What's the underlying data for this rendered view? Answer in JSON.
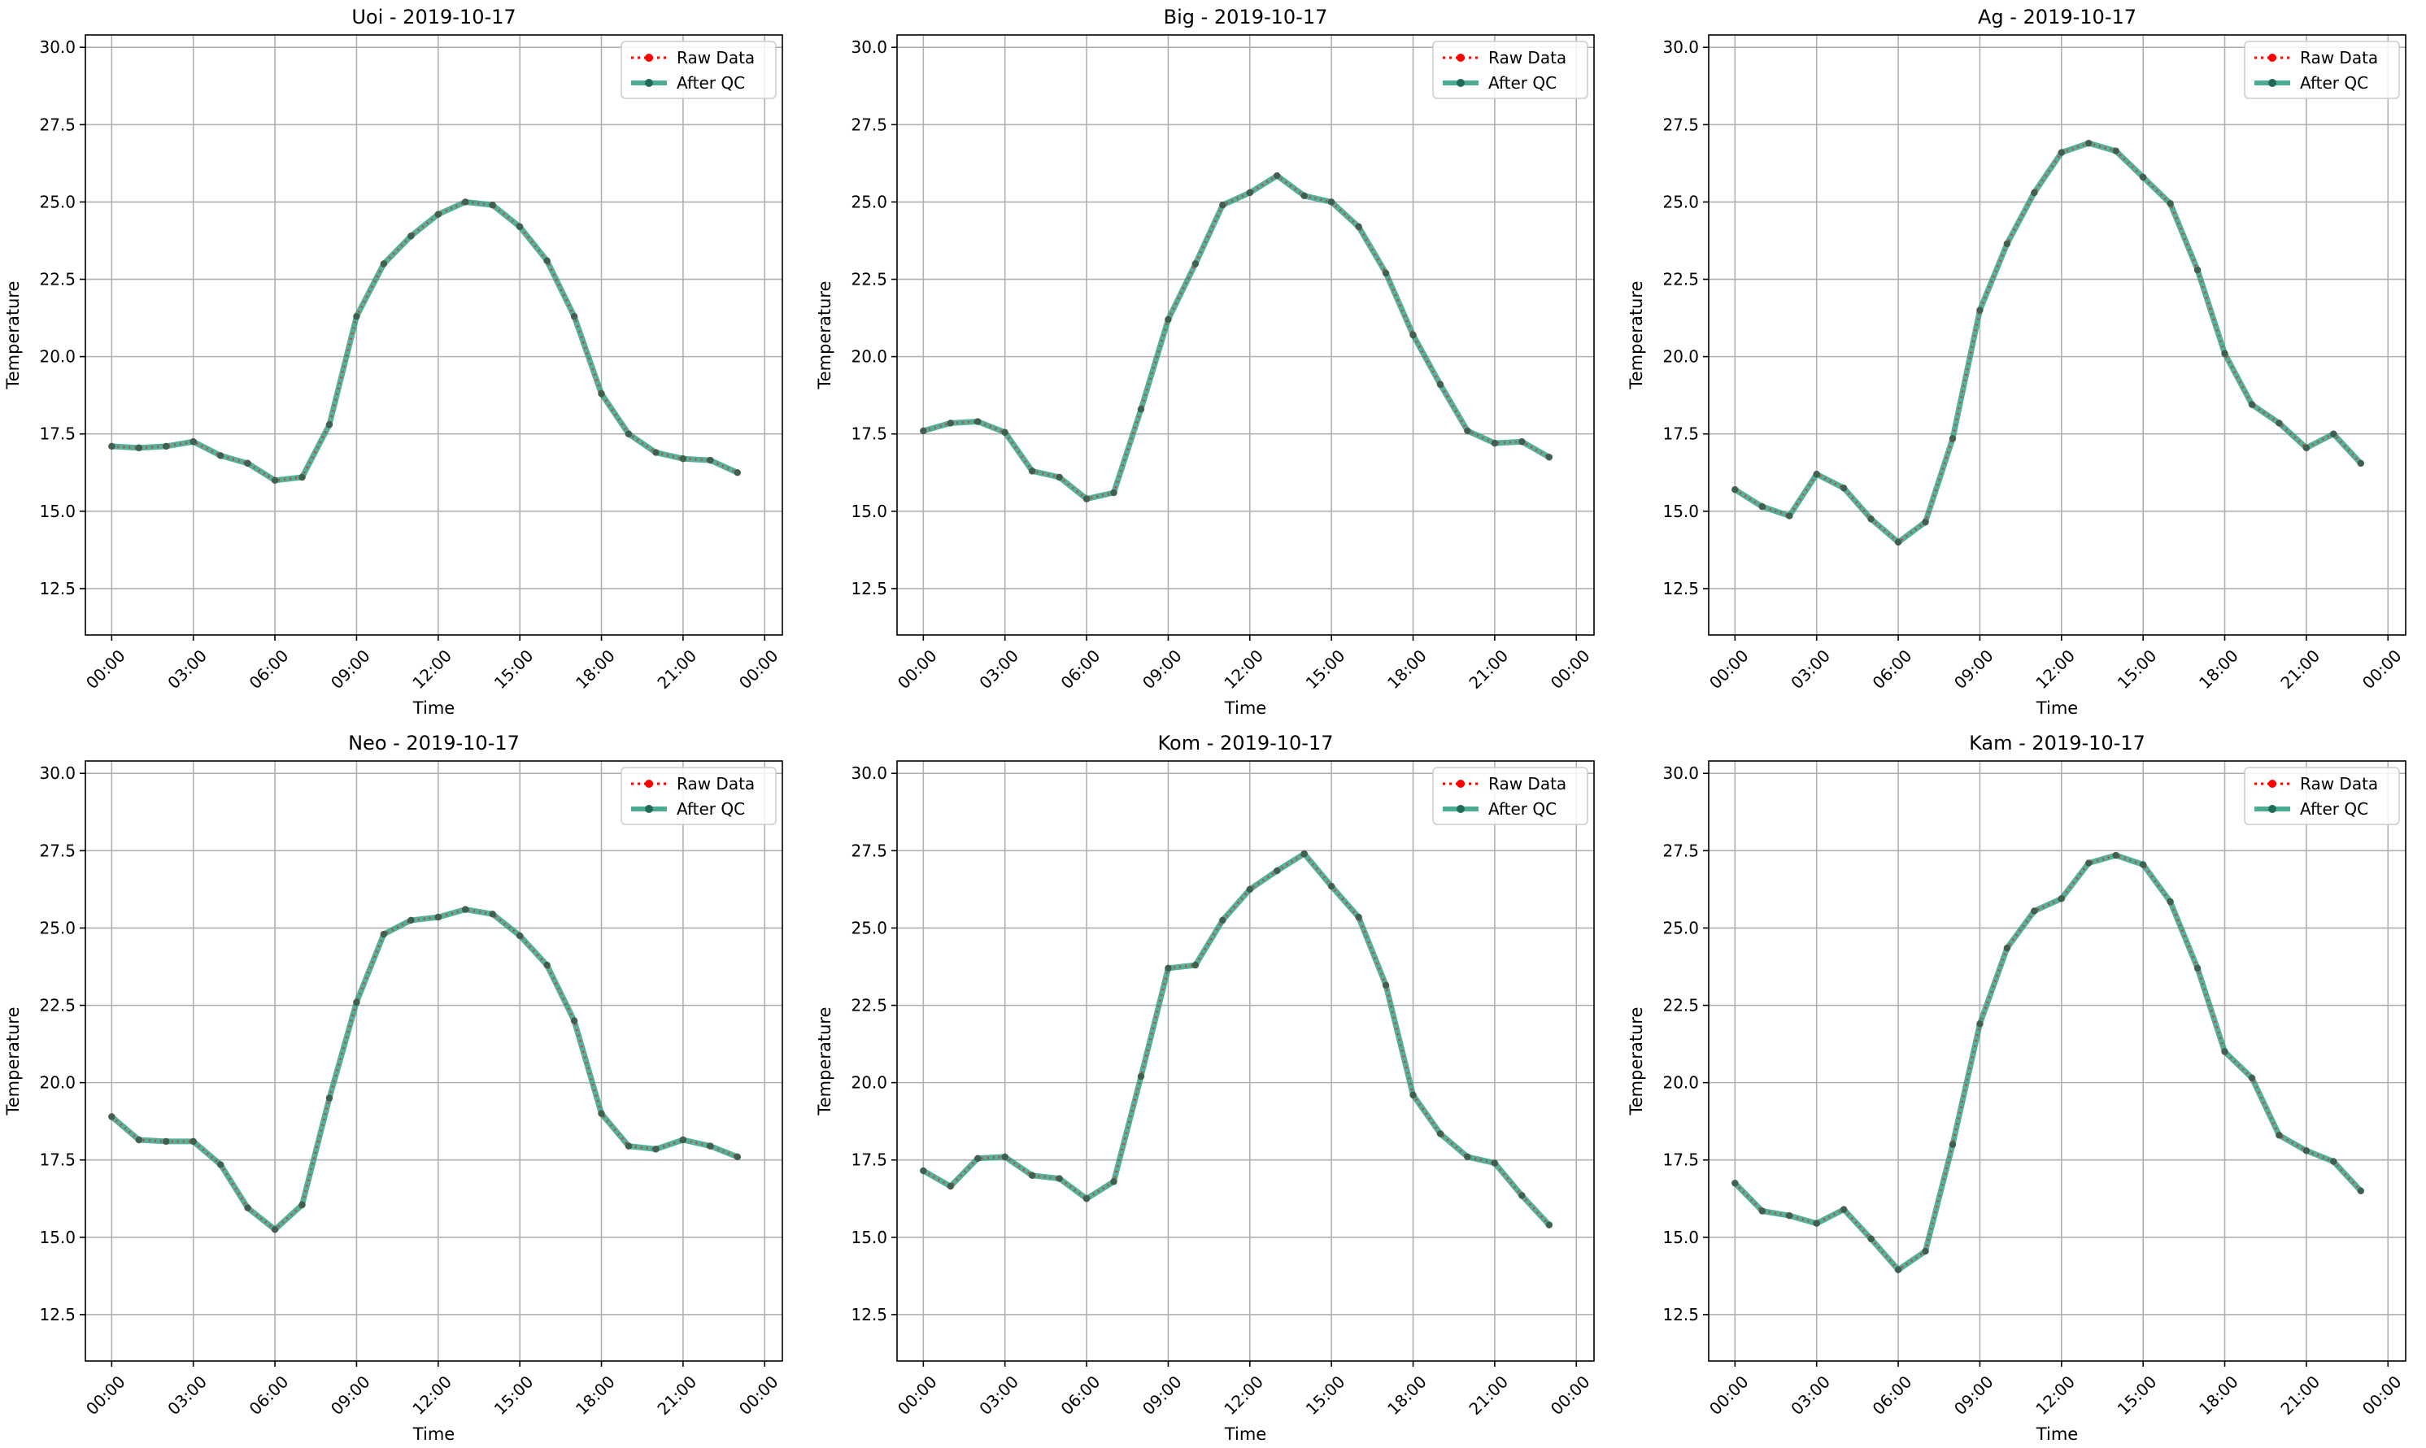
{
  "chart_data": [
    {
      "type": "line",
      "title": "Uoi - 2019-10-17",
      "xlabel": "Time",
      "ylabel": "Temperature",
      "xlim": [
        "23:00 (prev day)",
        "23:59"
      ],
      "x_ticks": [
        "00:00",
        "03:00",
        "06:00",
        "09:00",
        "12:00",
        "15:00",
        "18:00",
        "21:00",
        "00:00"
      ],
      "ylim": [
        11.0,
        30.4
      ],
      "y_ticks": [
        12.5,
        15.0,
        17.5,
        20.0,
        22.5,
        25.0,
        27.5,
        30.0
      ],
      "grid": true,
      "legend": "top-right",
      "x": [
        "00:00",
        "01:00",
        "02:00",
        "03:00",
        "04:00",
        "05:00",
        "06:00",
        "07:00",
        "08:00",
        "09:00",
        "10:00",
        "11:00",
        "12:00",
        "13:00",
        "14:00",
        "15:00",
        "16:00",
        "17:00",
        "18:00",
        "19:00",
        "20:00",
        "21:00",
        "22:00",
        "23:00"
      ],
      "series": [
        {
          "name": "Raw Data",
          "color": "#ff0000",
          "style": "dotted",
          "values": [
            17.1,
            17.05,
            17.1,
            17.25,
            16.8,
            16.55,
            16.0,
            16.1,
            17.8,
            21.3,
            23.0,
            23.9,
            24.6,
            25.0,
            24.9,
            24.2,
            23.1,
            21.3,
            18.8,
            17.5,
            16.9,
            16.7,
            16.65,
            16.25
          ]
        },
        {
          "name": "After QC",
          "color": "#2a9d80",
          "style": "solid",
          "values": [
            17.1,
            17.05,
            17.1,
            17.25,
            16.8,
            16.55,
            16.0,
            16.1,
            17.8,
            21.3,
            23.0,
            23.9,
            24.6,
            25.0,
            24.9,
            24.2,
            23.1,
            21.3,
            18.8,
            17.5,
            16.9,
            16.7,
            16.65,
            16.25
          ]
        }
      ]
    },
    {
      "type": "line",
      "title": "Big - 2019-10-17",
      "xlabel": "Time",
      "ylabel": "Temperature",
      "xlim": [
        "23:00 (prev day)",
        "23:59"
      ],
      "x_ticks": [
        "00:00",
        "03:00",
        "06:00",
        "09:00",
        "12:00",
        "15:00",
        "18:00",
        "21:00",
        "00:00"
      ],
      "ylim": [
        11.0,
        30.4
      ],
      "y_ticks": [
        12.5,
        15.0,
        17.5,
        20.0,
        22.5,
        25.0,
        27.5,
        30.0
      ],
      "grid": true,
      "legend": "top-right",
      "x": [
        "00:00",
        "01:00",
        "02:00",
        "03:00",
        "04:00",
        "05:00",
        "06:00",
        "07:00",
        "08:00",
        "09:00",
        "10:00",
        "11:00",
        "12:00",
        "13:00",
        "14:00",
        "15:00",
        "16:00",
        "17:00",
        "18:00",
        "19:00",
        "20:00",
        "21:00",
        "22:00",
        "23:00"
      ],
      "series": [
        {
          "name": "Raw Data",
          "color": "#ff0000",
          "style": "dotted",
          "values": [
            17.6,
            17.85,
            17.9,
            17.55,
            16.3,
            16.1,
            15.4,
            15.6,
            18.3,
            21.2,
            23.0,
            24.9,
            25.3,
            25.85,
            25.2,
            25.0,
            24.2,
            22.7,
            20.7,
            19.1,
            17.6,
            17.2,
            17.25,
            16.75
          ]
        },
        {
          "name": "After QC",
          "color": "#2a9d80",
          "style": "solid",
          "values": [
            17.6,
            17.85,
            17.9,
            17.55,
            16.3,
            16.1,
            15.4,
            15.6,
            18.3,
            21.2,
            23.0,
            24.9,
            25.3,
            25.85,
            25.2,
            25.0,
            24.2,
            22.7,
            20.7,
            19.1,
            17.6,
            17.2,
            17.25,
            16.75
          ]
        }
      ]
    },
    {
      "type": "line",
      "title": "Ag - 2019-10-17",
      "xlabel": "Time",
      "ylabel": "Temperature",
      "xlim": [
        "23:00 (prev day)",
        "23:59"
      ],
      "x_ticks": [
        "00:00",
        "03:00",
        "06:00",
        "09:00",
        "12:00",
        "15:00",
        "18:00",
        "21:00",
        "00:00"
      ],
      "ylim": [
        11.0,
        30.4
      ],
      "y_ticks": [
        12.5,
        15.0,
        17.5,
        20.0,
        22.5,
        25.0,
        27.5,
        30.0
      ],
      "grid": true,
      "legend": "top-right",
      "x": [
        "00:00",
        "01:00",
        "02:00",
        "03:00",
        "04:00",
        "05:00",
        "06:00",
        "07:00",
        "08:00",
        "09:00",
        "10:00",
        "11:00",
        "12:00",
        "13:00",
        "14:00",
        "15:00",
        "16:00",
        "17:00",
        "18:00",
        "19:00",
        "20:00",
        "21:00",
        "22:00",
        "23:00"
      ],
      "series": [
        {
          "name": "Raw Data",
          "color": "#ff0000",
          "style": "dotted",
          "values": [
            15.7,
            15.15,
            14.85,
            16.2,
            15.75,
            14.75,
            14.0,
            14.65,
            17.35,
            21.5,
            23.65,
            25.3,
            26.6,
            26.9,
            26.65,
            25.8,
            24.95,
            22.8,
            20.1,
            18.45,
            17.85,
            17.05,
            17.5,
            16.55
          ]
        },
        {
          "name": "After QC",
          "color": "#2a9d80",
          "style": "solid",
          "values": [
            15.7,
            15.15,
            14.85,
            16.2,
            15.75,
            14.75,
            14.0,
            14.65,
            17.35,
            21.5,
            23.65,
            25.3,
            26.6,
            26.9,
            26.65,
            25.8,
            24.95,
            22.8,
            20.1,
            18.45,
            17.85,
            17.05,
            17.5,
            16.55
          ]
        }
      ]
    },
    {
      "type": "line",
      "title": "Neo - 2019-10-17",
      "xlabel": "Time",
      "ylabel": "Temperature",
      "xlim": [
        "23:00 (prev day)",
        "23:59"
      ],
      "x_ticks": [
        "00:00",
        "03:00",
        "06:00",
        "09:00",
        "12:00",
        "15:00",
        "18:00",
        "21:00",
        "00:00"
      ],
      "ylim": [
        11.0,
        30.4
      ],
      "y_ticks": [
        12.5,
        15.0,
        17.5,
        20.0,
        22.5,
        25.0,
        27.5,
        30.0
      ],
      "grid": true,
      "legend": "top-right",
      "x": [
        "00:00",
        "01:00",
        "02:00",
        "03:00",
        "04:00",
        "05:00",
        "06:00",
        "07:00",
        "08:00",
        "09:00",
        "10:00",
        "11:00",
        "12:00",
        "13:00",
        "14:00",
        "15:00",
        "16:00",
        "17:00",
        "18:00",
        "19:00",
        "20:00",
        "21:00",
        "22:00",
        "23:00"
      ],
      "series": [
        {
          "name": "Raw Data",
          "color": "#ff0000",
          "style": "dotted",
          "values": [
            18.9,
            18.15,
            18.1,
            18.1,
            17.35,
            15.95,
            15.25,
            16.05,
            19.5,
            22.6,
            24.8,
            25.25,
            25.35,
            25.6,
            25.45,
            24.75,
            23.8,
            22.0,
            19.0,
            17.95,
            17.85,
            18.15,
            17.95,
            17.6
          ]
        },
        {
          "name": "After QC",
          "color": "#2a9d80",
          "style": "solid",
          "values": [
            18.9,
            18.15,
            18.1,
            18.1,
            17.35,
            15.95,
            15.25,
            16.05,
            19.5,
            22.6,
            24.8,
            25.25,
            25.35,
            25.6,
            25.45,
            24.75,
            23.8,
            22.0,
            19.0,
            17.95,
            17.85,
            18.15,
            17.95,
            17.6
          ]
        }
      ]
    },
    {
      "type": "line",
      "title": "Kom - 2019-10-17",
      "xlabel": "Time",
      "ylabel": "Temperature",
      "xlim": [
        "23:00 (prev day)",
        "23:59"
      ],
      "x_ticks": [
        "00:00",
        "03:00",
        "06:00",
        "09:00",
        "12:00",
        "15:00",
        "18:00",
        "21:00",
        "00:00"
      ],
      "ylim": [
        11.0,
        30.4
      ],
      "y_ticks": [
        12.5,
        15.0,
        17.5,
        20.0,
        22.5,
        25.0,
        27.5,
        30.0
      ],
      "grid": true,
      "legend": "top-right",
      "x": [
        "00:00",
        "01:00",
        "02:00",
        "03:00",
        "04:00",
        "05:00",
        "06:00",
        "07:00",
        "08:00",
        "09:00",
        "10:00",
        "11:00",
        "12:00",
        "13:00",
        "14:00",
        "15:00",
        "16:00",
        "17:00",
        "18:00",
        "19:00",
        "20:00",
        "21:00",
        "22:00",
        "23:00"
      ],
      "series": [
        {
          "name": "Raw Data",
          "color": "#ff0000",
          "style": "dotted",
          "values": [
            17.15,
            16.65,
            17.55,
            17.6,
            17.0,
            16.9,
            16.25,
            16.8,
            20.2,
            23.7,
            23.8,
            25.25,
            26.25,
            26.85,
            27.4,
            26.35,
            25.35,
            23.15,
            19.6,
            18.35,
            17.6,
            17.4,
            16.35,
            15.4
          ]
        },
        {
          "name": "After QC",
          "color": "#2a9d80",
          "style": "solid",
          "values": [
            17.15,
            16.65,
            17.55,
            17.6,
            17.0,
            16.9,
            16.25,
            16.8,
            20.2,
            23.7,
            23.8,
            25.25,
            26.25,
            26.85,
            27.4,
            26.35,
            25.35,
            23.15,
            19.6,
            18.35,
            17.6,
            17.4,
            16.35,
            15.4
          ]
        }
      ]
    },
    {
      "type": "line",
      "title": "Kam - 2019-10-17",
      "xlabel": "Time",
      "ylabel": "Temperature",
      "xlim": [
        "23:00 (prev day)",
        "23:59"
      ],
      "x_ticks": [
        "00:00",
        "03:00",
        "06:00",
        "09:00",
        "12:00",
        "15:00",
        "18:00",
        "21:00",
        "00:00"
      ],
      "ylim": [
        11.0,
        30.4
      ],
      "y_ticks": [
        12.5,
        15.0,
        17.5,
        20.0,
        22.5,
        25.0,
        27.5,
        30.0
      ],
      "grid": true,
      "legend": "top-right",
      "x": [
        "00:00",
        "01:00",
        "02:00",
        "03:00",
        "04:00",
        "05:00",
        "06:00",
        "07:00",
        "08:00",
        "09:00",
        "10:00",
        "11:00",
        "12:00",
        "13:00",
        "14:00",
        "15:00",
        "16:00",
        "17:00",
        "18:00",
        "19:00",
        "20:00",
        "21:00",
        "22:00",
        "23:00"
      ],
      "series": [
        {
          "name": "Raw Data",
          "color": "#ff0000",
          "style": "dotted",
          "values": [
            16.75,
            15.85,
            15.7,
            15.45,
            15.9,
            14.95,
            13.95,
            14.55,
            18.0,
            21.9,
            24.35,
            25.55,
            25.95,
            27.1,
            27.35,
            27.05,
            25.85,
            23.7,
            21.0,
            20.15,
            18.3,
            17.8,
            17.45,
            16.5
          ]
        },
        {
          "name": "After QC",
          "color": "#2a9d80",
          "style": "solid",
          "values": [
            16.75,
            15.85,
            15.7,
            15.45,
            15.9,
            14.95,
            13.95,
            14.55,
            18.0,
            21.9,
            24.35,
            25.55,
            25.95,
            27.1,
            27.35,
            27.05,
            25.85,
            23.7,
            21.0,
            20.15,
            18.3,
            17.8,
            17.45,
            16.5
          ]
        }
      ]
    }
  ]
}
